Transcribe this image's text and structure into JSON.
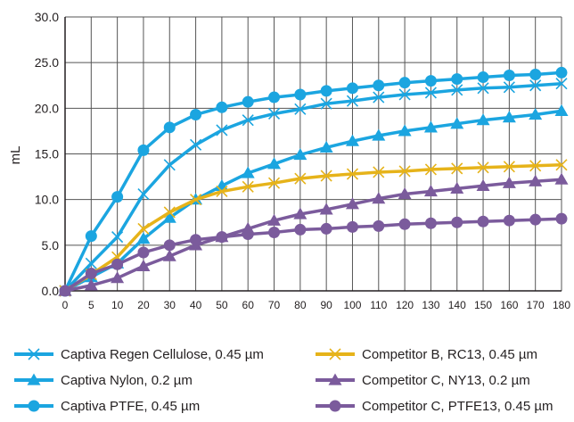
{
  "chart_data": {
    "type": "line",
    "ylabel": "mL",
    "ylim": [
      0,
      30
    ],
    "yticks": [
      "0.0",
      "5.0",
      "10.0",
      "15.0",
      "20.0",
      "25.0",
      "30.0"
    ],
    "categories": [
      "0",
      "5",
      "10",
      "20",
      "30",
      "40",
      "50",
      "60",
      "70",
      "80",
      "90",
      "100",
      "110",
      "120",
      "130",
      "140",
      "150",
      "160",
      "170",
      "180"
    ],
    "grid": "horizontal + vertical",
    "legend_position": "bottom",
    "series": [
      {
        "name": "Captiva Regen Cellulose, 0.45 µm",
        "color": "#1ba5e0",
        "marker": "x",
        "values": [
          0,
          3,
          5.9,
          10.6,
          13.8,
          16,
          17.6,
          18.7,
          19.4,
          19.9,
          20.5,
          20.8,
          21.2,
          21.5,
          21.7,
          22,
          22.2,
          22.3,
          22.5,
          22.7
        ]
      },
      {
        "name": "Captiva Nylon, 0.2 µm",
        "color": "#1ba5e0",
        "marker": "triangle",
        "values": [
          0,
          1.5,
          3,
          5.7,
          8,
          10,
          11.5,
          12.9,
          13.9,
          14.9,
          15.7,
          16.4,
          17,
          17.5,
          17.9,
          18.3,
          18.7,
          19,
          19.3,
          19.7
        ]
      },
      {
        "name": "Captiva PTFE, 0.45 µm",
        "color": "#1ba5e0",
        "marker": "circle",
        "values": [
          0,
          6,
          10.3,
          15.4,
          17.9,
          19.3,
          20.1,
          20.7,
          21.2,
          21.5,
          21.9,
          22.2,
          22.5,
          22.8,
          23,
          23.2,
          23.4,
          23.6,
          23.7,
          23.9
        ]
      },
      {
        "name": "Competitor B, RC13, 0.45 µm",
        "color": "#e6b31a",
        "marker": "x",
        "values": [
          0,
          1.8,
          3.7,
          6.8,
          8.6,
          10,
          10.9,
          11.4,
          11.8,
          12.3,
          12.6,
          12.8,
          13,
          13.1,
          13.3,
          13.4,
          13.5,
          13.6,
          13.7,
          13.8
        ]
      },
      {
        "name": "Competitor C, NY13, 0.2 µm",
        "color": "#7b5b9c",
        "marker": "triangle",
        "values": [
          0,
          0.6,
          1.4,
          2.7,
          3.8,
          5,
          5.9,
          6.8,
          7.7,
          8.4,
          8.9,
          9.5,
          10.1,
          10.6,
          10.9,
          11.2,
          11.5,
          11.8,
          12,
          12.2
        ]
      },
      {
        "name": "Competitor C, PTFE13, 0.45 µm",
        "color": "#7b5b9c",
        "marker": "circle",
        "values": [
          0,
          1.9,
          2.9,
          4.2,
          5,
          5.6,
          5.9,
          6.2,
          6.4,
          6.7,
          6.8,
          7,
          7.1,
          7.3,
          7.4,
          7.5,
          7.6,
          7.7,
          7.8,
          7.9
        ]
      }
    ]
  },
  "legend": [
    {
      "label": "Captiva Regen Cellulose, 0.45 µm",
      "color": "#1ba5e0",
      "marker": "x"
    },
    {
      "label": "Captiva Nylon, 0.2 µm",
      "color": "#1ba5e0",
      "marker": "triangle"
    },
    {
      "label": "Captiva PTFE, 0.45 µm",
      "color": "#1ba5e0",
      "marker": "circle"
    },
    {
      "label": "Competitor B, RC13, 0.45 µm",
      "color": "#e6b31a",
      "marker": "x"
    },
    {
      "label": "Competitor C, NY13, 0.2 µm",
      "color": "#7b5b9c",
      "marker": "triangle"
    },
    {
      "label": "Competitor C, PTFE13, 0.45 µm",
      "color": "#7b5b9c",
      "marker": "circle"
    }
  ]
}
